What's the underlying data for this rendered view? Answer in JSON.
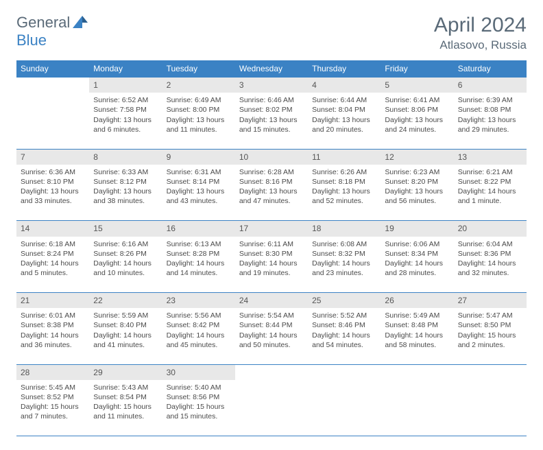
{
  "logo": {
    "text1": "General",
    "text2": "Blue"
  },
  "title": "April 2024",
  "location": "Atlasovo, Russia",
  "dayHeaders": [
    "Sunday",
    "Monday",
    "Tuesday",
    "Wednesday",
    "Thursday",
    "Friday",
    "Saturday"
  ],
  "colors": {
    "accent": "#3b82c4",
    "header_bg": "#3b82c4",
    "header_text": "#ffffff",
    "daynum_bg": "#e8e8e8",
    "body_text": "#4a4a4a",
    "title_text": "#5a6a78"
  },
  "weeks": [
    {
      "nums": [
        "",
        "1",
        "2",
        "3",
        "4",
        "5",
        "6"
      ],
      "cells": [
        null,
        {
          "sunrise": "Sunrise: 6:52 AM",
          "sunset": "Sunset: 7:58 PM",
          "day1": "Daylight: 13 hours",
          "day2": "and 6 minutes."
        },
        {
          "sunrise": "Sunrise: 6:49 AM",
          "sunset": "Sunset: 8:00 PM",
          "day1": "Daylight: 13 hours",
          "day2": "and 11 minutes."
        },
        {
          "sunrise": "Sunrise: 6:46 AM",
          "sunset": "Sunset: 8:02 PM",
          "day1": "Daylight: 13 hours",
          "day2": "and 15 minutes."
        },
        {
          "sunrise": "Sunrise: 6:44 AM",
          "sunset": "Sunset: 8:04 PM",
          "day1": "Daylight: 13 hours",
          "day2": "and 20 minutes."
        },
        {
          "sunrise": "Sunrise: 6:41 AM",
          "sunset": "Sunset: 8:06 PM",
          "day1": "Daylight: 13 hours",
          "day2": "and 24 minutes."
        },
        {
          "sunrise": "Sunrise: 6:39 AM",
          "sunset": "Sunset: 8:08 PM",
          "day1": "Daylight: 13 hours",
          "day2": "and 29 minutes."
        }
      ]
    },
    {
      "nums": [
        "7",
        "8",
        "9",
        "10",
        "11",
        "12",
        "13"
      ],
      "cells": [
        {
          "sunrise": "Sunrise: 6:36 AM",
          "sunset": "Sunset: 8:10 PM",
          "day1": "Daylight: 13 hours",
          "day2": "and 33 minutes."
        },
        {
          "sunrise": "Sunrise: 6:33 AM",
          "sunset": "Sunset: 8:12 PM",
          "day1": "Daylight: 13 hours",
          "day2": "and 38 minutes."
        },
        {
          "sunrise": "Sunrise: 6:31 AM",
          "sunset": "Sunset: 8:14 PM",
          "day1": "Daylight: 13 hours",
          "day2": "and 43 minutes."
        },
        {
          "sunrise": "Sunrise: 6:28 AM",
          "sunset": "Sunset: 8:16 PM",
          "day1": "Daylight: 13 hours",
          "day2": "and 47 minutes."
        },
        {
          "sunrise": "Sunrise: 6:26 AM",
          "sunset": "Sunset: 8:18 PM",
          "day1": "Daylight: 13 hours",
          "day2": "and 52 minutes."
        },
        {
          "sunrise": "Sunrise: 6:23 AM",
          "sunset": "Sunset: 8:20 PM",
          "day1": "Daylight: 13 hours",
          "day2": "and 56 minutes."
        },
        {
          "sunrise": "Sunrise: 6:21 AM",
          "sunset": "Sunset: 8:22 PM",
          "day1": "Daylight: 14 hours",
          "day2": "and 1 minute."
        }
      ]
    },
    {
      "nums": [
        "14",
        "15",
        "16",
        "17",
        "18",
        "19",
        "20"
      ],
      "cells": [
        {
          "sunrise": "Sunrise: 6:18 AM",
          "sunset": "Sunset: 8:24 PM",
          "day1": "Daylight: 14 hours",
          "day2": "and 5 minutes."
        },
        {
          "sunrise": "Sunrise: 6:16 AM",
          "sunset": "Sunset: 8:26 PM",
          "day1": "Daylight: 14 hours",
          "day2": "and 10 minutes."
        },
        {
          "sunrise": "Sunrise: 6:13 AM",
          "sunset": "Sunset: 8:28 PM",
          "day1": "Daylight: 14 hours",
          "day2": "and 14 minutes."
        },
        {
          "sunrise": "Sunrise: 6:11 AM",
          "sunset": "Sunset: 8:30 PM",
          "day1": "Daylight: 14 hours",
          "day2": "and 19 minutes."
        },
        {
          "sunrise": "Sunrise: 6:08 AM",
          "sunset": "Sunset: 8:32 PM",
          "day1": "Daylight: 14 hours",
          "day2": "and 23 minutes."
        },
        {
          "sunrise": "Sunrise: 6:06 AM",
          "sunset": "Sunset: 8:34 PM",
          "day1": "Daylight: 14 hours",
          "day2": "and 28 minutes."
        },
        {
          "sunrise": "Sunrise: 6:04 AM",
          "sunset": "Sunset: 8:36 PM",
          "day1": "Daylight: 14 hours",
          "day2": "and 32 minutes."
        }
      ]
    },
    {
      "nums": [
        "21",
        "22",
        "23",
        "24",
        "25",
        "26",
        "27"
      ],
      "cells": [
        {
          "sunrise": "Sunrise: 6:01 AM",
          "sunset": "Sunset: 8:38 PM",
          "day1": "Daylight: 14 hours",
          "day2": "and 36 minutes."
        },
        {
          "sunrise": "Sunrise: 5:59 AM",
          "sunset": "Sunset: 8:40 PM",
          "day1": "Daylight: 14 hours",
          "day2": "and 41 minutes."
        },
        {
          "sunrise": "Sunrise: 5:56 AM",
          "sunset": "Sunset: 8:42 PM",
          "day1": "Daylight: 14 hours",
          "day2": "and 45 minutes."
        },
        {
          "sunrise": "Sunrise: 5:54 AM",
          "sunset": "Sunset: 8:44 PM",
          "day1": "Daylight: 14 hours",
          "day2": "and 50 minutes."
        },
        {
          "sunrise": "Sunrise: 5:52 AM",
          "sunset": "Sunset: 8:46 PM",
          "day1": "Daylight: 14 hours",
          "day2": "and 54 minutes."
        },
        {
          "sunrise": "Sunrise: 5:49 AM",
          "sunset": "Sunset: 8:48 PM",
          "day1": "Daylight: 14 hours",
          "day2": "and 58 minutes."
        },
        {
          "sunrise": "Sunrise: 5:47 AM",
          "sunset": "Sunset: 8:50 PM",
          "day1": "Daylight: 15 hours",
          "day2": "and 2 minutes."
        }
      ]
    },
    {
      "nums": [
        "28",
        "29",
        "30",
        "",
        "",
        "",
        ""
      ],
      "cells": [
        {
          "sunrise": "Sunrise: 5:45 AM",
          "sunset": "Sunset: 8:52 PM",
          "day1": "Daylight: 15 hours",
          "day2": "and 7 minutes."
        },
        {
          "sunrise": "Sunrise: 5:43 AM",
          "sunset": "Sunset: 8:54 PM",
          "day1": "Daylight: 15 hours",
          "day2": "and 11 minutes."
        },
        {
          "sunrise": "Sunrise: 5:40 AM",
          "sunset": "Sunset: 8:56 PM",
          "day1": "Daylight: 15 hours",
          "day2": "and 15 minutes."
        },
        null,
        null,
        null,
        null
      ]
    }
  ]
}
